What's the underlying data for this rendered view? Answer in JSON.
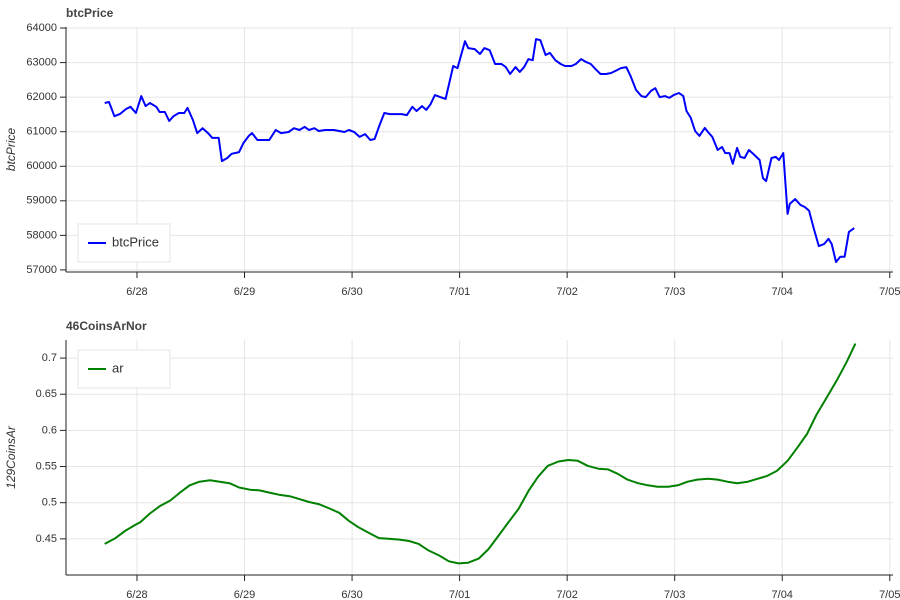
{
  "chart_data": [
    {
      "type": "line",
      "title": "btcPrice",
      "y_label": "btcPrice",
      "grid": true,
      "legend": "bottom-left",
      "xlim": [
        -0.66,
        7.03
      ],
      "ylim": [
        56940,
        64030
      ],
      "xticks": [
        {
          "value": 0,
          "label": "6/28"
        },
        {
          "value": 1,
          "label": "6/29"
        },
        {
          "value": 2,
          "label": "6/30"
        },
        {
          "value": 3,
          "label": "7/01"
        },
        {
          "value": 4,
          "label": "7/02"
        },
        {
          "value": 5,
          "label": "7/03"
        },
        {
          "value": 6,
          "label": "7/04"
        },
        {
          "value": 7,
          "label": "7/05"
        }
      ],
      "yticks": [
        57000,
        58000,
        59000,
        60000,
        61000,
        62000,
        63000,
        64000
      ],
      "x": [
        -0.3,
        -0.26,
        -0.21,
        -0.16,
        -0.1,
        -0.06,
        -0.01,
        0.04,
        0.08,
        0.12,
        0.18,
        0.21,
        0.26,
        0.3,
        0.34,
        0.39,
        0.44,
        0.47,
        0.52,
        0.56,
        0.61,
        0.66,
        0.7,
        0.76,
        0.79,
        0.84,
        0.88,
        0.95,
        0.99,
        1.04,
        1.07,
        1.12,
        1.18,
        1.23,
        1.29,
        1.34,
        1.41,
        1.46,
        1.51,
        1.56,
        1.6,
        1.65,
        1.69,
        1.75,
        1.83,
        1.88,
        1.93,
        1.97,
        2.02,
        2.07,
        2.12,
        2.17,
        2.21,
        2.25,
        2.3,
        2.35,
        2.41,
        2.46,
        2.51,
        2.56,
        2.6,
        2.65,
        2.69,
        2.73,
        2.77,
        2.82,
        2.87,
        2.94,
        2.98,
        3.05,
        3.08,
        3.14,
        3.19,
        3.23,
        3.28,
        3.33,
        3.39,
        3.43,
        3.47,
        3.52,
        3.56,
        3.6,
        3.64,
        3.68,
        3.71,
        3.75,
        3.8,
        3.84,
        3.89,
        3.94,
        3.98,
        4.04,
        4.08,
        4.13,
        4.18,
        4.22,
        4.27,
        4.31,
        4.36,
        4.41,
        4.45,
        4.5,
        4.55,
        4.59,
        4.64,
        4.69,
        4.73,
        4.78,
        4.82,
        4.86,
        4.91,
        4.95,
        4.99,
        5.04,
        5.08,
        5.11,
        5.15,
        5.19,
        5.23,
        5.28,
        5.31,
        5.35,
        5.4,
        5.44,
        5.47,
        5.51,
        5.54,
        5.58,
        5.61,
        5.65,
        5.69,
        5.74,
        5.79,
        5.82,
        5.85,
        5.9,
        5.94,
        5.97,
        6.01,
        6.05,
        6.07,
        6.12,
        6.17,
        6.21,
        6.25,
        6.29,
        6.34,
        6.39,
        6.43,
        6.46,
        6.5,
        6.54,
        6.58,
        6.62,
        6.67
      ],
      "series": [
        {
          "name": "btcPrice",
          "color": "#0000ff",
          "values": [
            61830,
            61860,
            61450,
            61510,
            61660,
            61720,
            61540,
            62030,
            61740,
            61830,
            61720,
            61570,
            61570,
            61310,
            61450,
            61540,
            61540,
            61690,
            61340,
            60960,
            61100,
            60960,
            60820,
            60820,
            60150,
            60240,
            60360,
            60410,
            60670,
            60880,
            60960,
            60760,
            60760,
            60760,
            61050,
            60960,
            60990,
            61100,
            61050,
            61140,
            61050,
            61100,
            61020,
            61050,
            61050,
            61020,
            60990,
            61050,
            60990,
            60850,
            60930,
            60760,
            60790,
            61140,
            61540,
            61510,
            61510,
            61510,
            61480,
            61720,
            61600,
            61740,
            61630,
            61800,
            62060,
            62000,
            61950,
            62900,
            62840,
            63620,
            63420,
            63390,
            63250,
            63420,
            63360,
            62960,
            62960,
            62870,
            62670,
            62870,
            62730,
            62870,
            63100,
            63070,
            63680,
            63650,
            63220,
            63280,
            63070,
            62960,
            62900,
            62900,
            62960,
            63100,
            63010,
            62960,
            62790,
            62670,
            62670,
            62700,
            62760,
            62840,
            62870,
            62610,
            62210,
            62030,
            62000,
            62180,
            62260,
            62000,
            62030,
            61980,
            62060,
            62120,
            62030,
            61600,
            61400,
            61020,
            60880,
            61110,
            60990,
            60850,
            60470,
            60560,
            60380,
            60380,
            60070,
            60530,
            60270,
            60240,
            60470,
            60330,
            60180,
            59660,
            59570,
            60240,
            60270,
            60180,
            60380,
            58620,
            58910,
            59050,
            58880,
            58820,
            58710,
            58240,
            57690,
            57750,
            57900,
            57750,
            57230,
            57380,
            57380,
            58100,
            58210
          ]
        }
      ]
    },
    {
      "type": "line",
      "title": "46CoinsArNor",
      "y_label": "129CoinsAr",
      "grid": true,
      "legend": "top-left",
      "xlim": [
        -0.66,
        7.03
      ],
      "ylim": [
        0.4,
        0.725
      ],
      "xticks": [
        {
          "value": 0,
          "label": "6/28"
        },
        {
          "value": 1,
          "label": "6/29"
        },
        {
          "value": 2,
          "label": "6/30"
        },
        {
          "value": 3,
          "label": "7/01"
        },
        {
          "value": 4,
          "label": "7/02"
        },
        {
          "value": 5,
          "label": "7/03"
        },
        {
          "value": 6,
          "label": "7/04"
        },
        {
          "value": 7,
          "label": "7/05"
        }
      ],
      "yticks": [
        0.45,
        0.5,
        0.55,
        0.6,
        0.65,
        0.7
      ],
      "x": [
        -0.3,
        -0.2,
        -0.11,
        -0.02,
        0.03,
        0.12,
        0.21,
        0.31,
        0.4,
        0.49,
        0.58,
        0.68,
        0.77,
        0.86,
        0.95,
        1.05,
        1.14,
        1.23,
        1.32,
        1.42,
        1.51,
        1.6,
        1.69,
        1.79,
        1.88,
        1.97,
        2.06,
        2.16,
        2.25,
        2.34,
        2.44,
        2.53,
        2.62,
        2.71,
        2.81,
        2.9,
        2.99,
        3.08,
        3.18,
        3.27,
        3.36,
        3.45,
        3.55,
        3.64,
        3.73,
        3.82,
        3.92,
        4.01,
        4.1,
        4.19,
        4.29,
        4.38,
        4.47,
        4.56,
        4.66,
        4.75,
        4.84,
        4.94,
        5.03,
        5.12,
        5.21,
        5.31,
        5.4,
        5.49,
        5.58,
        5.68,
        5.77,
        5.86,
        5.95,
        6.05,
        6.14,
        6.23,
        6.32,
        6.42,
        6.51,
        6.6,
        6.68
      ],
      "series": [
        {
          "name": "ar",
          "color": "#008000",
          "values": [
            0.443,
            0.451,
            0.461,
            0.469,
            0.473,
            0.485,
            0.495,
            0.503,
            0.514,
            0.524,
            0.529,
            0.531,
            0.529,
            0.527,
            0.521,
            0.518,
            0.517,
            0.514,
            0.511,
            0.509,
            0.505,
            0.501,
            0.498,
            0.492,
            0.486,
            0.475,
            0.466,
            0.458,
            0.451,
            0.45,
            0.449,
            0.447,
            0.443,
            0.434,
            0.427,
            0.419,
            0.416,
            0.417,
            0.423,
            0.436,
            0.454,
            0.472,
            0.492,
            0.516,
            0.536,
            0.551,
            0.557,
            0.559,
            0.558,
            0.551,
            0.547,
            0.546,
            0.54,
            0.532,
            0.527,
            0.524,
            0.522,
            0.522,
            0.524,
            0.529,
            0.532,
            0.533,
            0.532,
            0.529,
            0.527,
            0.529,
            0.533,
            0.537,
            0.544,
            0.558,
            0.576,
            0.595,
            0.622,
            0.647,
            0.67,
            0.695,
            0.72
          ]
        }
      ]
    }
  ]
}
